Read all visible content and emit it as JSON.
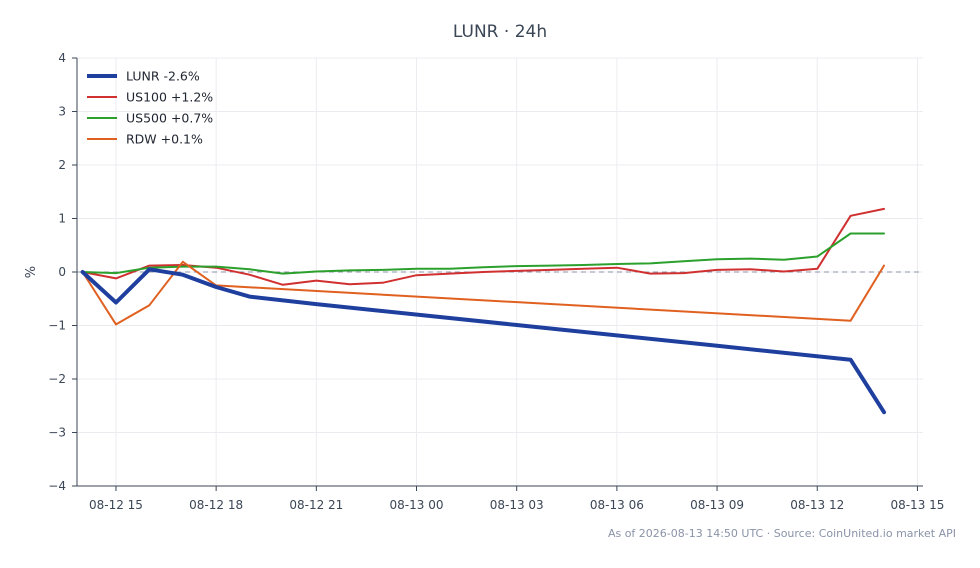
{
  "chart_data": {
    "type": "line",
    "title": "LUNR · 24h",
    "xlabel": "",
    "ylabel": "%",
    "ylim": [
      -4,
      4
    ],
    "yticks": [
      -4,
      -3,
      -2,
      -1,
      0,
      1,
      2,
      3,
      4
    ],
    "ytick_labels": [
      "−4",
      "−3",
      "−2",
      "−1",
      "0",
      "1",
      "2",
      "3",
      "4"
    ],
    "xlim": [
      "2026-08-12 13:50",
      "2026-08-13 15:10"
    ],
    "xticks": [
      "2026-08-12 15:00",
      "2026-08-12 18:00",
      "2026-08-12 21:00",
      "2026-08-13 00:00",
      "2026-08-13 03:00",
      "2026-08-13 06:00",
      "2026-08-13 09:00",
      "2026-08-13 12:00",
      "2026-08-13 15:00"
    ],
    "xtick_labels": [
      "08-12 15",
      "08-12 18",
      "08-12 21",
      "08-13 00",
      "08-13 03",
      "08-13 06",
      "08-13 09",
      "08-13 12",
      "08-13 15"
    ],
    "grid": true,
    "zero_line": true,
    "legend_position": "top-left",
    "footnote": "As of 2026-08-13 14:50 UTC · Source: CoinUnited.io market API",
    "series": [
      {
        "name": "LUNR -2.6%",
        "color": "#1f3f9f",
        "emphasis": true,
        "points": [
          [
            "2026-08-12 14:00",
            0.0
          ],
          [
            "2026-08-12 15:00",
            -0.57
          ],
          [
            "2026-08-12 16:00",
            0.05
          ],
          [
            "2026-08-12 17:00",
            -0.05
          ],
          [
            "2026-08-12 18:00",
            -0.28
          ],
          [
            "2026-08-12 19:00",
            -0.46
          ],
          [
            "2026-08-12 21:00",
            -0.6
          ],
          [
            "2026-08-13 03:00",
            -0.99
          ],
          [
            "2026-08-13 09:00",
            -1.38
          ],
          [
            "2026-08-13 13:00",
            -1.64
          ],
          [
            "2026-08-13 14:00",
            -2.62
          ]
        ]
      },
      {
        "name": "US100 +1.2%",
        "color": "#d03030",
        "emphasis": false,
        "points": [
          [
            "2026-08-12 14:00",
            0.0
          ],
          [
            "2026-08-12 15:00",
            -0.12
          ],
          [
            "2026-08-12 16:00",
            0.12
          ],
          [
            "2026-08-12 17:00",
            0.13
          ],
          [
            "2026-08-12 18:00",
            0.08
          ],
          [
            "2026-08-12 19:00",
            -0.05
          ],
          [
            "2026-08-12 20:00",
            -0.24
          ],
          [
            "2026-08-12 21:00",
            -0.16
          ],
          [
            "2026-08-12 22:00",
            -0.23
          ],
          [
            "2026-08-12 23:00",
            -0.2
          ],
          [
            "2026-08-13 00:00",
            -0.06
          ],
          [
            "2026-08-13 01:00",
            -0.03
          ],
          [
            "2026-08-13 02:00",
            0.0
          ],
          [
            "2026-08-13 03:00",
            0.02
          ],
          [
            "2026-08-13 04:00",
            0.04
          ],
          [
            "2026-08-13 05:00",
            0.06
          ],
          [
            "2026-08-13 06:00",
            0.08
          ],
          [
            "2026-08-13 07:00",
            -0.03
          ],
          [
            "2026-08-13 08:00",
            -0.02
          ],
          [
            "2026-08-13 09:00",
            0.04
          ],
          [
            "2026-08-13 10:00",
            0.05
          ],
          [
            "2026-08-13 11:00",
            0.01
          ],
          [
            "2026-08-13 12:00",
            0.06
          ],
          [
            "2026-08-13 13:00",
            1.05
          ],
          [
            "2026-08-13 14:00",
            1.18
          ]
        ]
      },
      {
        "name": "US500 +0.7%",
        "color": "#2ca02c",
        "emphasis": false,
        "points": [
          [
            "2026-08-12 14:00",
            0.0
          ],
          [
            "2026-08-12 15:00",
            -0.02
          ],
          [
            "2026-08-12 16:00",
            0.08
          ],
          [
            "2026-08-12 17:00",
            0.1
          ],
          [
            "2026-08-12 18:00",
            0.1
          ],
          [
            "2026-08-12 19:00",
            0.05
          ],
          [
            "2026-08-12 20:00",
            -0.03
          ],
          [
            "2026-08-12 21:00",
            0.01
          ],
          [
            "2026-08-12 22:00",
            0.03
          ],
          [
            "2026-08-12 23:00",
            0.04
          ],
          [
            "2026-08-13 00:00",
            0.06
          ],
          [
            "2026-08-13 01:00",
            0.06
          ],
          [
            "2026-08-13 02:00",
            0.09
          ],
          [
            "2026-08-13 03:00",
            0.11
          ],
          [
            "2026-08-13 04:00",
            0.12
          ],
          [
            "2026-08-13 05:00",
            0.13
          ],
          [
            "2026-08-13 06:00",
            0.15
          ],
          [
            "2026-08-13 07:00",
            0.16
          ],
          [
            "2026-08-13 08:00",
            0.2
          ],
          [
            "2026-08-13 09:00",
            0.24
          ],
          [
            "2026-08-13 10:00",
            0.25
          ],
          [
            "2026-08-13 11:00",
            0.23
          ],
          [
            "2026-08-13 12:00",
            0.29
          ],
          [
            "2026-08-13 13:00",
            0.72
          ],
          [
            "2026-08-13 14:00",
            0.72
          ]
        ]
      },
      {
        "name": "RDW +0.1%",
        "color": "#e06020",
        "emphasis": false,
        "points": [
          [
            "2026-08-12 14:00",
            0.0
          ],
          [
            "2026-08-12 15:00",
            -0.98
          ],
          [
            "2026-08-12 16:00",
            -0.62
          ],
          [
            "2026-08-12 17:00",
            0.19
          ],
          [
            "2026-08-12 18:00",
            -0.25
          ],
          [
            "2026-08-13 13:00",
            -0.91
          ],
          [
            "2026-08-13 14:00",
            0.12
          ]
        ]
      }
    ]
  }
}
